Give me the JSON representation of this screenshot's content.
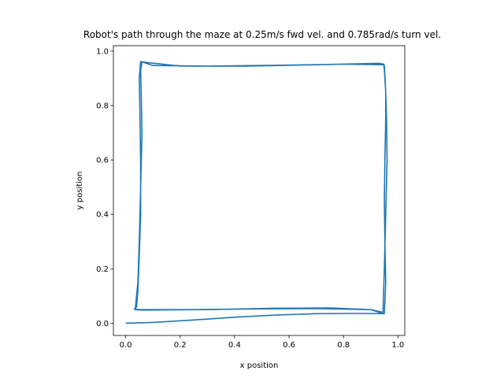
{
  "chart_data": {
    "type": "line",
    "title": "Robot's path through the maze at 0.25m/s fwd vel. and 0.785rad/s turn vel.",
    "xlabel": "x position",
    "ylabel": "y position",
    "xlim": [
      -0.045,
      1.025
    ],
    "ylim": [
      -0.045,
      1.02
    ],
    "xticks": [
      0.0,
      0.2,
      0.4,
      0.6,
      0.8,
      1.0
    ],
    "xtick_labels": [
      "0.0",
      "0.2",
      "0.4",
      "0.6",
      "0.8",
      "1.0"
    ],
    "yticks": [
      0.0,
      0.2,
      0.4,
      0.6,
      0.8,
      1.0
    ],
    "ytick_labels": [
      "0.0",
      "0.2",
      "0.4",
      "0.6",
      "0.8",
      "1.0"
    ],
    "grid": false,
    "line_color": "#1f77b4",
    "series": [
      {
        "x": [
          0.0,
          0.1,
          0.25,
          0.4,
          0.55,
          0.7,
          0.85,
          0.95,
          0.955,
          0.952,
          0.95,
          0.952,
          0.955,
          0.955,
          0.95,
          0.948,
          0.93,
          0.7,
          0.45,
          0.2,
          0.06,
          0.055,
          0.057,
          0.06,
          0.055,
          0.05,
          0.045,
          0.038,
          0.035,
          0.06,
          0.25,
          0.5,
          0.7,
          0.9,
          0.945,
          0.95,
          0.955,
          0.96,
          0.958,
          0.955,
          0.951,
          0.95,
          0.948,
          0.945,
          0.8,
          0.55,
          0.3,
          0.1,
          0.055,
          0.05,
          0.052,
          0.055,
          0.055,
          0.05,
          0.045,
          0.04,
          0.032,
          0.05,
          0.3,
          0.55,
          0.75,
          0.9,
          0.95
        ],
        "y": [
          0.0,
          0.003,
          0.012,
          0.022,
          0.03,
          0.035,
          0.036,
          0.035,
          0.15,
          0.3,
          0.45,
          0.6,
          0.75,
          0.85,
          0.93,
          0.952,
          0.955,
          0.95,
          0.945,
          0.945,
          0.96,
          0.93,
          0.85,
          0.7,
          0.5,
          0.3,
          0.15,
          0.08,
          0.05,
          0.048,
          0.05,
          0.053,
          0.054,
          0.05,
          0.04,
          0.2,
          0.4,
          0.6,
          0.75,
          0.85,
          0.93,
          0.945,
          0.952,
          0.95,
          0.952,
          0.948,
          0.945,
          0.947,
          0.962,
          0.9,
          0.8,
          0.6,
          0.4,
          0.25,
          0.12,
          0.06,
          0.052,
          0.05,
          0.05,
          0.055,
          0.056,
          0.05,
          0.034
        ]
      }
    ]
  }
}
